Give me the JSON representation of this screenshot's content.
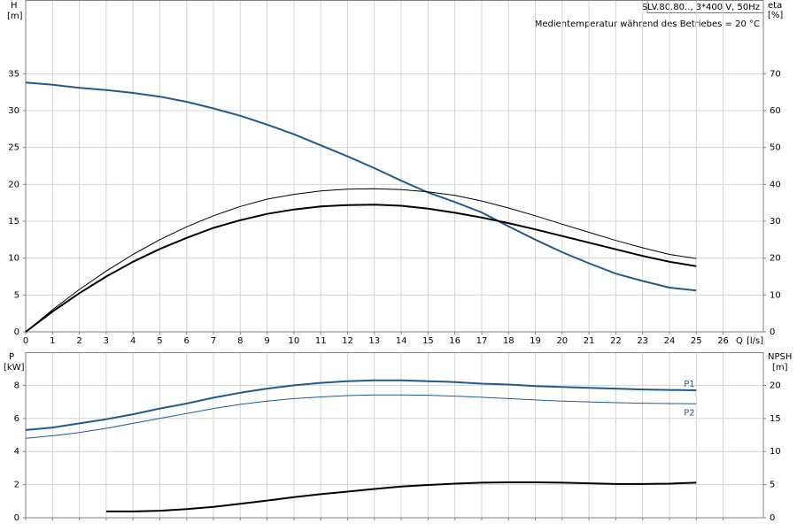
{
  "chart_data": [
    {
      "type": "line",
      "title": "SLV.80.80.., 3*400 V, 50Hz",
      "subtitle": "Medientemperatur während des Betriebes = 20 °C",
      "xlabel": "Q",
      "xunit": "[l/s]",
      "ylabel": "H",
      "yunit": "[m]",
      "y2label": "eta",
      "y2unit": "[%]",
      "xlim": [
        0,
        27.5
      ],
      "xticks": [
        0,
        1,
        2,
        3,
        4,
        5,
        6,
        7,
        8,
        9,
        10,
        11,
        12,
        13,
        14,
        15,
        16,
        17,
        18,
        19,
        20,
        21,
        22,
        23,
        24,
        25,
        26
      ],
      "ylim": [
        0,
        45
      ],
      "yticks": [
        0,
        5,
        10,
        15,
        20,
        25,
        30,
        35
      ],
      "y2lim": [
        0,
        90
      ],
      "y2ticks": [
        0,
        10,
        20,
        30,
        40,
        50,
        60,
        70
      ],
      "grid": true,
      "x": [
        0,
        1,
        2,
        3,
        4,
        5,
        6,
        7,
        8,
        9,
        10,
        11,
        12,
        13,
        14,
        15,
        16,
        17,
        18,
        19,
        20,
        21,
        22,
        23,
        24,
        25
      ],
      "series": [
        {
          "color": "#1f5b8f",
          "line_style": "thick",
          "values": [
            33.8,
            33.5,
            33.1,
            32.8,
            32.4,
            31.9,
            31.2,
            30.3,
            29.3,
            28.1,
            26.8,
            25.3,
            23.8,
            22.2,
            20.5,
            18.9,
            17.6,
            16.2,
            14.3,
            12.5,
            10.8,
            9.3,
            7.9,
            6.9,
            6.0,
            5.6
          ]
        },
        {
          "color": "#000000",
          "line_style": "thin",
          "axis": "y2",
          "values": [
            0,
            6,
            11.5,
            16.5,
            21,
            25,
            28.5,
            31.5,
            34,
            36,
            37.3,
            38.2,
            38.7,
            38.8,
            38.6,
            38,
            37,
            35.5,
            33.6,
            31.5,
            29.2,
            27,
            24.8,
            22.8,
            21,
            19.9
          ]
        },
        {
          "color": "#000000",
          "line_style": "thick",
          "axis": "y2",
          "values": [
            0,
            5.5,
            10.5,
            15,
            19,
            22.5,
            25.5,
            28.2,
            30.3,
            32,
            33.2,
            34,
            34.4,
            34.5,
            34.2,
            33.4,
            32.3,
            31,
            29.5,
            27.8,
            26,
            24.2,
            22.4,
            20.6,
            19,
            17.8
          ]
        }
      ]
    },
    {
      "type": "line",
      "ylabel": "P",
      "yunit": "[kW]",
      "y2label": "NPSH",
      "y2unit": "[m]",
      "xlim": [
        0,
        27.5
      ],
      "xticks": [
        0,
        1,
        2,
        3,
        4,
        5,
        6,
        7,
        8,
        9,
        10,
        11,
        12,
        13,
        14,
        15,
        16,
        17,
        18,
        19,
        20,
        21,
        22,
        23,
        24,
        25,
        26
      ],
      "ylim": [
        0,
        10
      ],
      "yticks": [
        0,
        2,
        4,
        6,
        8
      ],
      "y2lim": [
        0,
        25
      ],
      "y2ticks": [
        0,
        5,
        10,
        15,
        20
      ],
      "grid": true,
      "x": [
        0,
        1,
        2,
        3,
        4,
        5,
        6,
        7,
        8,
        9,
        10,
        11,
        12,
        13,
        14,
        15,
        16,
        17,
        18,
        19,
        20,
        21,
        22,
        23,
        24,
        25
      ],
      "series": [
        {
          "name": "P1",
          "color": "#1f5b8f",
          "line_style": "thick",
          "values": [
            5.3,
            5.45,
            5.7,
            5.95,
            6.25,
            6.6,
            6.9,
            7.25,
            7.55,
            7.8,
            8.0,
            8.15,
            8.25,
            8.3,
            8.3,
            8.25,
            8.2,
            8.1,
            8.05,
            7.95,
            7.9,
            7.85,
            7.8,
            7.75,
            7.72,
            7.7
          ]
        },
        {
          "name": "P2",
          "color": "#1f5b8f",
          "line_style": "thin",
          "values": [
            4.8,
            4.95,
            5.15,
            5.4,
            5.7,
            6.0,
            6.3,
            6.6,
            6.85,
            7.05,
            7.2,
            7.3,
            7.38,
            7.42,
            7.42,
            7.4,
            7.35,
            7.28,
            7.2,
            7.12,
            7.05,
            7.0,
            6.95,
            6.92,
            6.9,
            6.88
          ]
        },
        {
          "color": "#000000",
          "line_style": "thick",
          "axis": "y2",
          "values": [
            null,
            null,
            null,
            0.95,
            0.95,
            1.05,
            1.3,
            1.65,
            2.1,
            2.6,
            3.1,
            3.55,
            3.95,
            4.35,
            4.7,
            4.95,
            5.15,
            5.3,
            5.35,
            5.35,
            5.3,
            5.2,
            5.1,
            5.1,
            5.15,
            5.3
          ]
        }
      ]
    }
  ]
}
